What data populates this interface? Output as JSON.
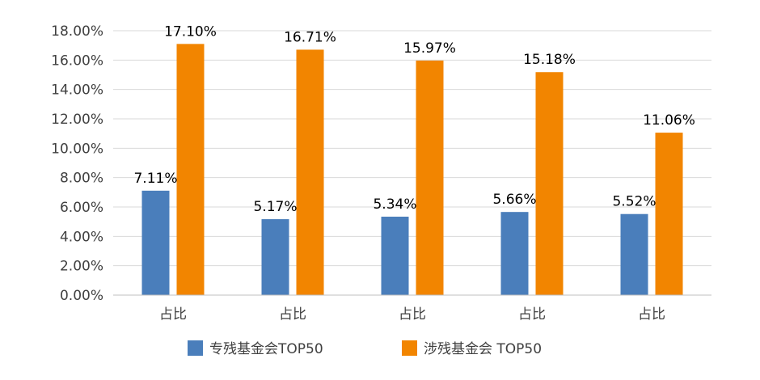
{
  "chart_data": {
    "type": "bar",
    "categories": [
      "占比",
      "占比",
      "占比",
      "占比",
      "占比"
    ],
    "series": [
      {
        "name": "专残基金会TOP50",
        "values": [
          7.11,
          5.17,
          5.34,
          5.66,
          5.52
        ],
        "labels": [
          "7.11%",
          "5.17%",
          "5.34%",
          "5.66%",
          "5.52%"
        ],
        "color": "#4a7ebb"
      },
      {
        "name": "涉残基金会 TOP50",
        "values": [
          17.1,
          16.71,
          15.97,
          15.18,
          11.06
        ],
        "labels": [
          "17.10%",
          "16.71%",
          "15.97%",
          "15.18%",
          "11.06%"
        ],
        "color": "#f28500"
      }
    ],
    "y_ticks": [
      "0.00%",
      "2.00%",
      "4.00%",
      "6.00%",
      "8.00%",
      "10.00%",
      "12.00%",
      "14.00%",
      "16.00%",
      "18.00%"
    ],
    "ylim": [
      0,
      18
    ],
    "grid": true,
    "legend": "bottom"
  }
}
